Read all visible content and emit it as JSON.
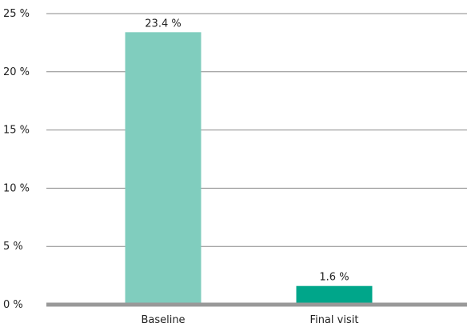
{
  "chart_data": {
    "type": "bar",
    "title": "",
    "xlabel": "",
    "ylabel": "",
    "categories": [
      "Baseline",
      "Final visit"
    ],
    "values": [
      23.4,
      1.6
    ],
    "data_labels": [
      "23.4 %",
      "1.6 %"
    ],
    "ylim": [
      0,
      25
    ],
    "yticks": [
      0,
      5,
      10,
      15,
      20,
      25
    ],
    "ytick_labels": [
      "0 %",
      "5 %",
      "10 %",
      "15 %",
      "20 %",
      "25 %"
    ],
    "grid": "horizontal",
    "legend": "none",
    "colors": {
      "bars": [
        "#80CDBE",
        "#00A68A"
      ],
      "grid": "#8A8A8A",
      "baseline": "#999999",
      "text": "#222222"
    }
  }
}
